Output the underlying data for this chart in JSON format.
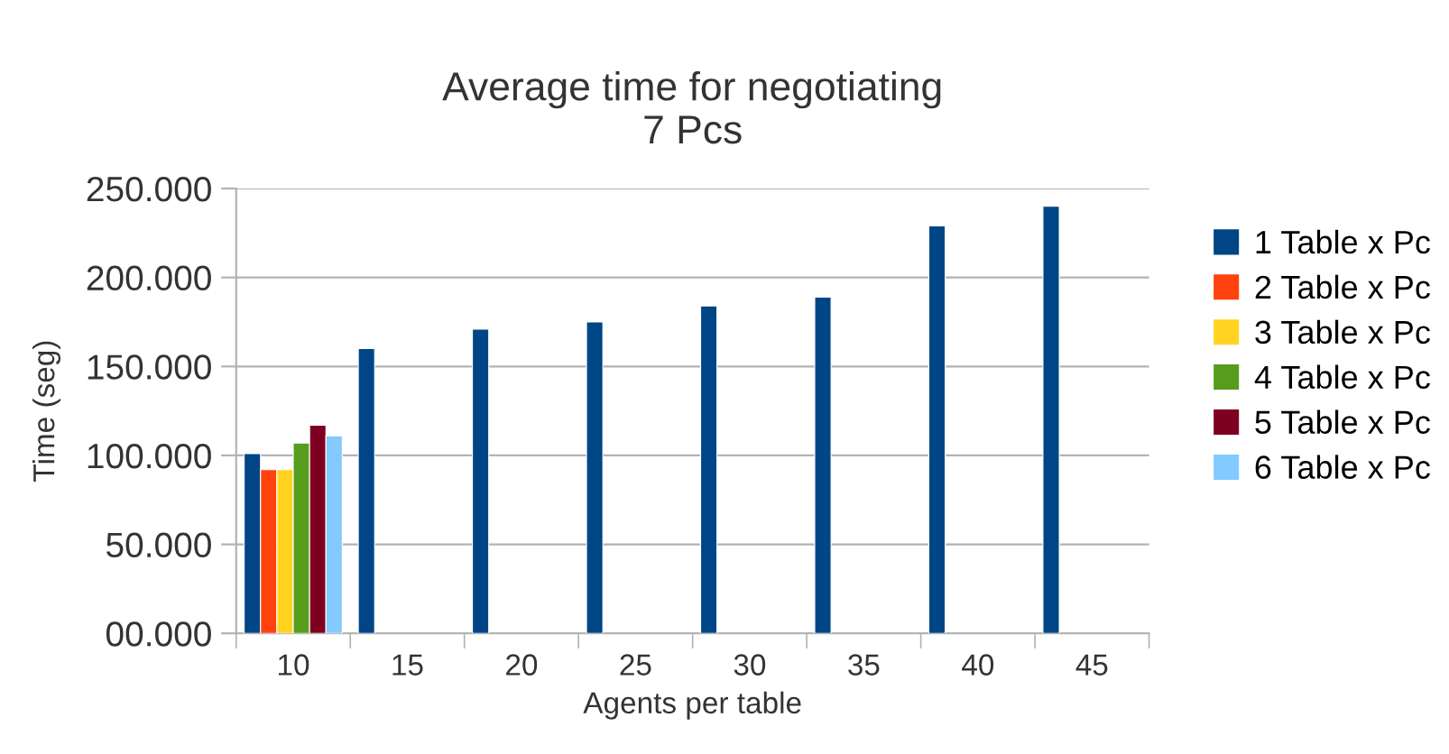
{
  "chart_data": {
    "type": "bar",
    "title": "Average time for negotiating\n7 Pcs",
    "xlabel": "Agents per table",
    "ylabel": "Time (seg)",
    "categories": [
      "10",
      "15",
      "20",
      "25",
      "30",
      "35",
      "40",
      "45"
    ],
    "series": [
      {
        "name": "1 Table x Pc",
        "color": "#004586",
        "values": [
          101,
          160,
          171,
          175,
          184,
          189,
          229,
          240
        ]
      },
      {
        "name": "2 Table x Pc",
        "color": "#ff420e",
        "values": [
          92,
          null,
          null,
          null,
          null,
          null,
          null,
          null
        ]
      },
      {
        "name": "3 Table x Pc",
        "color": "#ffd320",
        "values": [
          92,
          null,
          null,
          null,
          null,
          null,
          null,
          null
        ]
      },
      {
        "name": "4 Table x Pc",
        "color": "#579d1c",
        "values": [
          107,
          null,
          null,
          null,
          null,
          null,
          null,
          null
        ]
      },
      {
        "name": "5 Table x Pc",
        "color": "#7e0021",
        "values": [
          117,
          null,
          null,
          null,
          null,
          null,
          null,
          null
        ]
      },
      {
        "name": "6 Table x Pc",
        "color": "#83caff",
        "values": [
          111,
          null,
          null,
          null,
          null,
          null,
          null,
          null
        ]
      }
    ],
    "ylim": [
      0,
      250
    ],
    "yticks": [
      {
        "value": 0,
        "label": "00.000"
      },
      {
        "value": 50,
        "label": "50.000"
      },
      {
        "value": 100,
        "label": "100.000"
      },
      {
        "value": 150,
        "label": "150.000"
      },
      {
        "value": 200,
        "label": "200.000"
      },
      {
        "value": 250,
        "label": "250.000"
      }
    ],
    "grid": "y",
    "legend": "right"
  }
}
